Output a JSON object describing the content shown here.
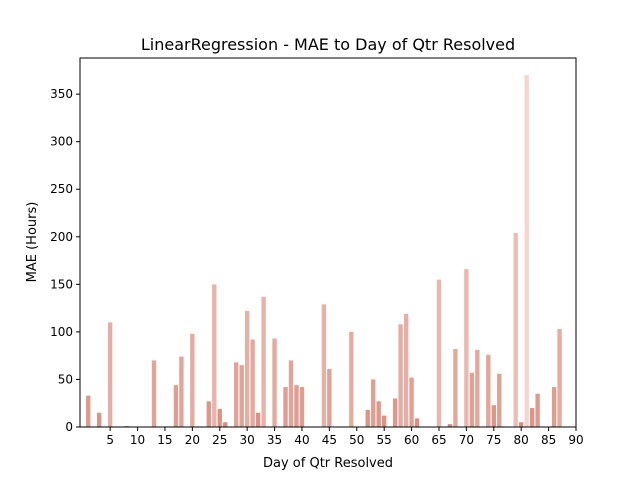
{
  "chart_data": {
    "type": "bar",
    "title": "LinearRegression - MAE to Day of Qtr Resolved",
    "xlabel": "Day of Qtr Resolved",
    "ylabel": "MAE (Hours)",
    "xlim": [
      -0.5,
      90
    ],
    "ylim": [
      0,
      388
    ],
    "xticks": [
      5,
      10,
      15,
      20,
      25,
      30,
      35,
      40,
      45,
      50,
      55,
      60,
      65,
      70,
      75,
      80,
      85,
      90
    ],
    "yticks": [
      0,
      50,
      100,
      150,
      200,
      250,
      300,
      350
    ],
    "grid": false,
    "bar_width": 0.8,
    "color_light": "#f6d5d0",
    "color_dark": "#d68878",
    "x": [
      1,
      3,
      5,
      8,
      13,
      17,
      18,
      20,
      23,
      24,
      25,
      26,
      28,
      29,
      30,
      31,
      32,
      33,
      35,
      37,
      38,
      39,
      40,
      44,
      45,
      49,
      52,
      53,
      54,
      55,
      57,
      58,
      59,
      60,
      61,
      65,
      67,
      68,
      70,
      71,
      72,
      74,
      75,
      76,
      79,
      80,
      81,
      82,
      83,
      86,
      87
    ],
    "values": [
      33,
      15,
      110,
      1,
      70,
      44,
      74,
      98,
      27,
      150,
      19,
      5,
      68,
      65,
      122,
      92,
      15,
      137,
      93,
      42,
      70,
      44,
      42,
      129,
      61,
      100,
      18,
      50,
      27,
      12,
      30,
      108,
      119,
      52,
      9,
      155,
      3,
      82,
      166,
      57,
      81,
      76,
      23,
      56,
      204,
      5,
      370,
      20,
      35,
      42,
      103
    ]
  }
}
